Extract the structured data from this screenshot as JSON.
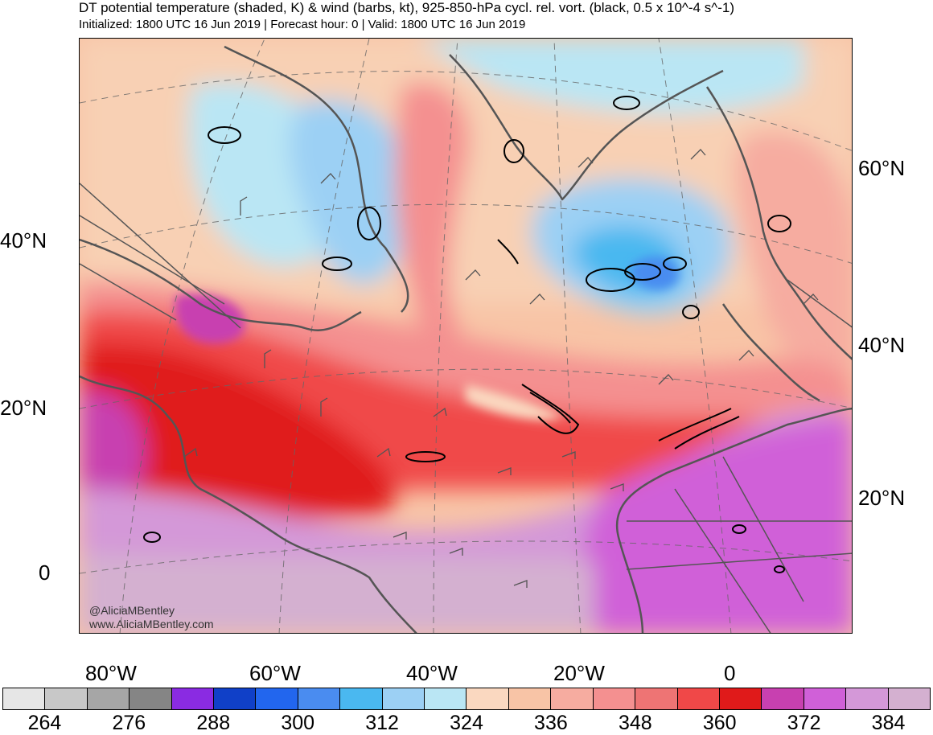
{
  "header": {
    "title": "DT potential temperature (shaded, K) & wind (barbs, kt), 925-850-hPa cycl. rel. vort. (black, 0.5 x 10^-4 s^-1)",
    "subtitle": "Initialized: 1800 UTC 16 Jun 2019 | Forecast hour: 0 | Valid: 1800 UTC 16 Jun 2019"
  },
  "map": {
    "lat_labels_left": [
      "40°N",
      "20°N",
      "0"
    ],
    "lat_labels_right": [
      "60°N",
      "40°N",
      "20°N"
    ],
    "lon_labels": [
      "80°W",
      "60°W",
      "40°W",
      "20°W",
      "0"
    ],
    "watermark": [
      "@AliciaMBentley",
      "www.AliciaMBentley.com"
    ]
  },
  "colorbar": {
    "colors": [
      "#e6e6e6",
      "#c8c8c8",
      "#a6a6a6",
      "#858585",
      "#8a2be2",
      "#1040c8",
      "#2266ee",
      "#4a8cf0",
      "#4ab8f0",
      "#9cd0f4",
      "#bae6f4",
      "#fad8c0",
      "#f8c4a6",
      "#f6aca0",
      "#f49090",
      "#ee7474",
      "#f04848",
      "#e01a1a",
      "#c840b0",
      "#d060d8",
      "#d498d8",
      "#d4b0d0"
    ],
    "tick_labels": [
      "264",
      "276",
      "288",
      "300",
      "312",
      "324",
      "336",
      "348",
      "360",
      "372",
      "384"
    ]
  }
}
